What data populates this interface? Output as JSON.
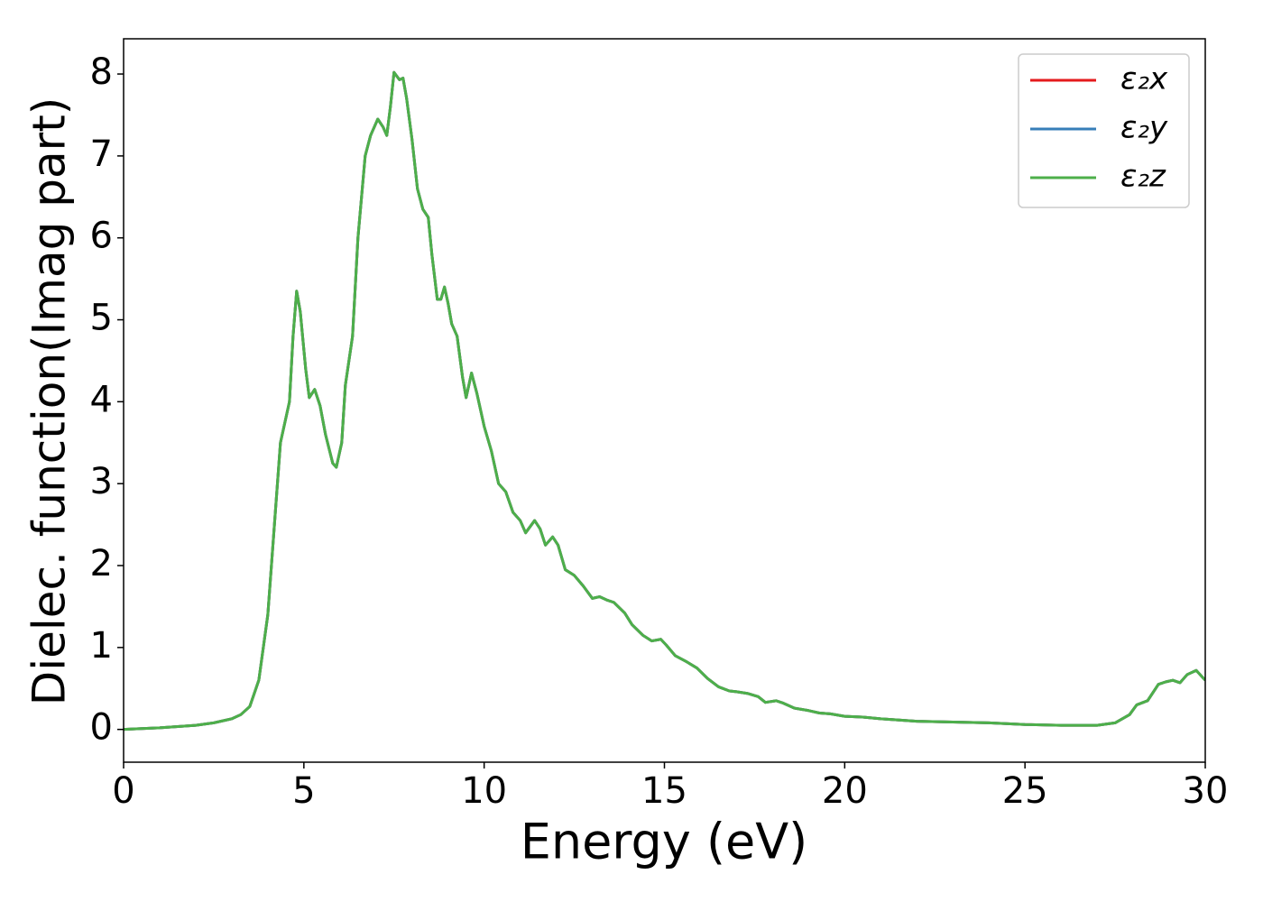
{
  "chart_data": {
    "type": "line",
    "xlabel": "Energy (eV)",
    "ylabel": "Dielec. function(Imag part)",
    "xlim": [
      0,
      30
    ],
    "ylim": [
      -0.4,
      8.43
    ],
    "xticks": [
      0,
      5,
      10,
      15,
      20,
      25,
      30
    ],
    "yticks": [
      0,
      1,
      2,
      3,
      4,
      5,
      6,
      7,
      8
    ],
    "legend": "upper right",
    "x": [
      0,
      1,
      2,
      2.5,
      3,
      3.25,
      3.5,
      3.75,
      4.0,
      4.2,
      4.35,
      4.5,
      4.6,
      4.7,
      4.8,
      4.9,
      5.05,
      5.15,
      5.3,
      5.45,
      5.6,
      5.8,
      5.9,
      6.05,
      6.15,
      6.35,
      6.5,
      6.7,
      6.85,
      7.05,
      7.2,
      7.3,
      7.4,
      7.5,
      7.65,
      7.75,
      7.85,
      8.0,
      8.15,
      8.3,
      8.45,
      8.55,
      8.7,
      8.8,
      8.9,
      9.0,
      9.1,
      9.25,
      9.4,
      9.5,
      9.65,
      9.8,
      10.0,
      10.2,
      10.4,
      10.6,
      10.8,
      11.0,
      11.15,
      11.4,
      11.55,
      11.7,
      11.9,
      12.05,
      12.25,
      12.5,
      12.75,
      13.0,
      13.2,
      13.4,
      13.6,
      13.9,
      14.1,
      14.4,
      14.65,
      14.9,
      15.05,
      15.3,
      15.6,
      15.9,
      16.2,
      16.5,
      16.8,
      17.0,
      17.3,
      17.6,
      17.8,
      18.1,
      18.3,
      18.6,
      19.0,
      19.3,
      19.6,
      20.0,
      20.5,
      21.0,
      22.0,
      23.0,
      24.0,
      25.0,
      26.0,
      27.0,
      27.5,
      27.9,
      28.1,
      28.4,
      28.7,
      28.9,
      29.1,
      29.3,
      29.5,
      29.75,
      30.0
    ],
    "series": [
      {
        "name": "ε₂x",
        "color": "#e41a1c",
        "values": [
          0.0,
          0.02,
          0.05,
          0.08,
          0.13,
          0.18,
          0.28,
          0.6,
          1.4,
          2.6,
          3.5,
          3.8,
          4.0,
          4.8,
          5.35,
          5.1,
          4.4,
          4.05,
          4.15,
          3.95,
          3.6,
          3.25,
          3.2,
          3.5,
          4.2,
          4.8,
          6.0,
          7.0,
          7.25,
          7.45,
          7.35,
          7.25,
          7.6,
          8.02,
          7.93,
          7.95,
          7.7,
          7.2,
          6.6,
          6.35,
          6.25,
          5.8,
          5.25,
          5.25,
          5.4,
          5.2,
          4.95,
          4.8,
          4.3,
          4.05,
          4.35,
          4.1,
          3.7,
          3.4,
          3.0,
          2.9,
          2.65,
          2.55,
          2.4,
          2.55,
          2.45,
          2.25,
          2.35,
          2.25,
          1.95,
          1.88,
          1.75,
          1.6,
          1.62,
          1.58,
          1.55,
          1.42,
          1.28,
          1.15,
          1.08,
          1.1,
          1.03,
          0.9,
          0.83,
          0.75,
          0.62,
          0.52,
          0.47,
          0.46,
          0.44,
          0.4,
          0.33,
          0.35,
          0.32,
          0.26,
          0.23,
          0.2,
          0.19,
          0.16,
          0.15,
          0.13,
          0.1,
          0.09,
          0.08,
          0.06,
          0.05,
          0.05,
          0.08,
          0.18,
          0.3,
          0.35,
          0.55,
          0.58,
          0.6,
          0.57,
          0.67,
          0.72,
          0.6
        ]
      },
      {
        "name": "ε₂y",
        "color": "#377eb8",
        "values": [
          0.0,
          0.02,
          0.05,
          0.08,
          0.13,
          0.18,
          0.28,
          0.6,
          1.4,
          2.6,
          3.5,
          3.8,
          4.0,
          4.8,
          5.35,
          5.1,
          4.4,
          4.05,
          4.15,
          3.95,
          3.6,
          3.25,
          3.2,
          3.5,
          4.2,
          4.8,
          6.0,
          7.0,
          7.25,
          7.45,
          7.35,
          7.25,
          7.6,
          8.02,
          7.93,
          7.95,
          7.7,
          7.2,
          6.6,
          6.35,
          6.25,
          5.8,
          5.25,
          5.25,
          5.4,
          5.2,
          4.95,
          4.8,
          4.3,
          4.05,
          4.35,
          4.1,
          3.7,
          3.4,
          3.0,
          2.9,
          2.65,
          2.55,
          2.4,
          2.55,
          2.45,
          2.25,
          2.35,
          2.25,
          1.95,
          1.88,
          1.75,
          1.6,
          1.62,
          1.58,
          1.55,
          1.42,
          1.28,
          1.15,
          1.08,
          1.1,
          1.03,
          0.9,
          0.83,
          0.75,
          0.62,
          0.52,
          0.47,
          0.46,
          0.44,
          0.4,
          0.33,
          0.35,
          0.32,
          0.26,
          0.23,
          0.2,
          0.19,
          0.16,
          0.15,
          0.13,
          0.1,
          0.09,
          0.08,
          0.06,
          0.05,
          0.05,
          0.08,
          0.18,
          0.3,
          0.35,
          0.55,
          0.58,
          0.6,
          0.57,
          0.67,
          0.72,
          0.6
        ]
      },
      {
        "name": "ε₂z",
        "color": "#4daf4a",
        "values": [
          0.0,
          0.02,
          0.05,
          0.08,
          0.13,
          0.18,
          0.28,
          0.6,
          1.4,
          2.6,
          3.5,
          3.8,
          4.0,
          4.8,
          5.35,
          5.1,
          4.4,
          4.05,
          4.15,
          3.95,
          3.6,
          3.25,
          3.2,
          3.5,
          4.2,
          4.8,
          6.0,
          7.0,
          7.25,
          7.45,
          7.35,
          7.25,
          7.6,
          8.02,
          7.93,
          7.95,
          7.7,
          7.2,
          6.6,
          6.35,
          6.25,
          5.8,
          5.25,
          5.25,
          5.4,
          5.2,
          4.95,
          4.8,
          4.3,
          4.05,
          4.35,
          4.1,
          3.7,
          3.4,
          3.0,
          2.9,
          2.65,
          2.55,
          2.4,
          2.55,
          2.45,
          2.25,
          2.35,
          2.25,
          1.95,
          1.88,
          1.75,
          1.6,
          1.62,
          1.58,
          1.55,
          1.42,
          1.28,
          1.15,
          1.08,
          1.1,
          1.03,
          0.9,
          0.83,
          0.75,
          0.62,
          0.52,
          0.47,
          0.46,
          0.44,
          0.4,
          0.33,
          0.35,
          0.32,
          0.26,
          0.23,
          0.2,
          0.19,
          0.16,
          0.15,
          0.13,
          0.1,
          0.09,
          0.08,
          0.06,
          0.05,
          0.05,
          0.08,
          0.18,
          0.3,
          0.35,
          0.55,
          0.58,
          0.6,
          0.57,
          0.67,
          0.72,
          0.6
        ]
      }
    ]
  }
}
